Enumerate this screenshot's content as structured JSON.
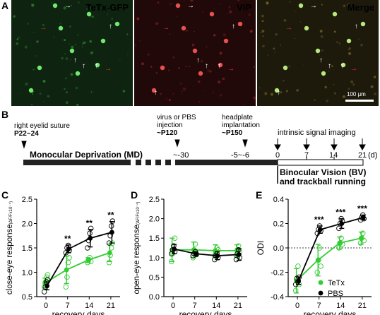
{
  "panels": {
    "A": "A",
    "B": "B",
    "C": "C",
    "D": "D",
    "E": "E"
  },
  "micrographs": [
    {
      "label": "TeTx-GFP",
      "label_color": "#33dd33",
      "bg": "#0e2410"
    },
    {
      "label": "VIP",
      "label_color": "#ee2020",
      "bg": "#220909"
    },
    {
      "label": "Merge",
      "label_color": "#e89a30",
      "bg": "#1d1a0c"
    }
  ],
  "scalebar_label": "100 μm",
  "timeline": {
    "suture": {
      "line1": "right eyelid suture",
      "line2": "P22~24"
    },
    "injection": {
      "line1": "virus or PBS",
      "line2": "injection",
      "line3": "~P120"
    },
    "headplate": {
      "line1": "headplate",
      "line2": "implantation",
      "line3": "~P150"
    },
    "imaging": "intrinsic signal imaging",
    "md_label": "Monocular Deprivation (MD)",
    "bv_label_1": "Binocular Vision (BV)",
    "bv_label_2": "and trackball running",
    "ticks": [
      "~-30",
      "-5~-6",
      "0",
      "7",
      "14",
      "21"
    ],
    "unit": "(d)"
  },
  "colors": {
    "tetx": "#33cc33",
    "pbs": "#000000"
  },
  "chart_data": [
    {
      "panel": "C",
      "type": "line",
      "ylabel": "close-eye response",
      "ylabel_unit": "(ΔF/Fx10⁻⁴)",
      "xlabel": "recovery days",
      "x": [
        0,
        7,
        14,
        21
      ],
      "xlim": [
        -3,
        24
      ],
      "ylim": [
        0.5,
        2.5
      ],
      "yticks": [
        "0.5",
        "1.0",
        "1.5",
        "2.0",
        "2.5"
      ],
      "xticks": [
        "0",
        "7",
        "14",
        "21"
      ],
      "significance": [
        "",
        "**",
        "**",
        "**"
      ],
      "series": [
        {
          "key": "pbs",
          "values": [
            0.72,
            1.48,
            1.7,
            1.82
          ],
          "err": [
            0.08,
            0.08,
            0.18,
            0.22
          ],
          "points": [
            [
              0.6,
              0.7,
              0.8,
              0.85
            ],
            [
              1.4,
              1.5,
              1.55,
              1.45
            ],
            [
              1.5,
              1.65,
              1.8,
              1.9
            ],
            [
              1.6,
              1.75,
              1.95,
              2.05
            ]
          ]
        },
        {
          "key": "tetx",
          "values": [
            0.78,
            1.05,
            1.25,
            1.4
          ],
          "err": [
            0.1,
            0.28,
            0.05,
            0.18
          ],
          "points": [
            [
              0.7,
              0.8,
              0.9,
              0.95
            ],
            [
              0.7,
              0.9,
              1.2,
              1.3
            ],
            [
              1.2,
              1.25,
              1.3,
              1.22
            ],
            [
              1.2,
              1.35,
              1.5,
              1.6
            ]
          ]
        }
      ]
    },
    {
      "panel": "D",
      "type": "line",
      "ylabel": "open-eye response",
      "ylabel_unit": "(ΔF/Fx10⁻⁴)",
      "xlabel": "recovery days",
      "x": [
        0,
        7,
        14,
        21
      ],
      "xlim": [
        -3,
        24
      ],
      "ylim": [
        0.0,
        2.5
      ],
      "yticks": [
        "0.0",
        "0.5",
        "1.0",
        "1.5",
        "2.0",
        "2.5"
      ],
      "xticks": [
        "0",
        "7",
        "14",
        "21"
      ],
      "significance": [
        "",
        "",
        "",
        ""
      ],
      "series": [
        {
          "key": "pbs",
          "values": [
            1.22,
            1.1,
            1.05,
            1.08
          ],
          "err": [
            0.12,
            0.05,
            0.1,
            0.15
          ],
          "points": [
            [
              1.1,
              1.2,
              1.3,
              1.15
            ],
            [
              1.05,
              1.1,
              1.15,
              1.08
            ],
            [
              0.95,
              1.05,
              1.1,
              1.0
            ],
            [
              0.95,
              1.1,
              1.2,
              1.0
            ]
          ]
        },
        {
          "key": "tetx",
          "values": [
            1.2,
            1.2,
            1.18,
            1.18
          ],
          "err": [
            0.3,
            0.2,
            0.15,
            0.15
          ],
          "points": [
            [
              0.9,
              1.1,
              1.3,
              1.5
            ],
            [
              1.0,
              1.2,
              1.35,
              1.1
            ],
            [
              1.05,
              1.15,
              1.25,
              1.2
            ],
            [
              1.05,
              1.2,
              1.3,
              1.15
            ]
          ]
        }
      ]
    },
    {
      "panel": "E",
      "type": "line",
      "ylabel": "ODI",
      "xlabel": "recovery days",
      "x": [
        0,
        7,
        14,
        21
      ],
      "xlim": [
        -3,
        24
      ],
      "ylim": [
        -0.4,
        0.4
      ],
      "yticks": [
        "-0.4",
        "-0.2",
        "0.0",
        "0.2",
        "0.4"
      ],
      "xticks": [
        "0",
        "7",
        "14",
        "21"
      ],
      "significance": [
        "",
        "***",
        "***",
        "***"
      ],
      "reference_line": 0.0,
      "legend": [
        {
          "key": "tetx",
          "label": "TeTx"
        },
        {
          "key": "pbs",
          "label": "PBS"
        }
      ],
      "series": [
        {
          "key": "pbs",
          "values": [
            -0.27,
            0.15,
            0.2,
            0.25
          ],
          "err": [
            0.03,
            0.03,
            0.04,
            0.02
          ],
          "points": [
            [
              -0.3,
              -0.25,
              -0.28,
              -0.24
            ],
            [
              0.12,
              0.15,
              0.18,
              0.14
            ],
            [
              0.16,
              0.2,
              0.24,
              0.22
            ],
            [
              0.23,
              0.25,
              0.27,
              0.24
            ]
          ]
        },
        {
          "key": "tetx",
          "values": [
            -0.27,
            -0.1,
            0.04,
            0.08
          ],
          "err": [
            0.1,
            0.13,
            0.05,
            0.05
          ],
          "points": [
            [
              -0.35,
              -0.25,
              -0.15,
              -0.3
            ],
            [
              -0.2,
              -0.1,
              0.0,
              -0.15
            ],
            [
              0.0,
              0.04,
              0.08,
              0.03
            ],
            [
              0.04,
              0.08,
              0.12,
              0.06
            ]
          ]
        }
      ]
    }
  ]
}
